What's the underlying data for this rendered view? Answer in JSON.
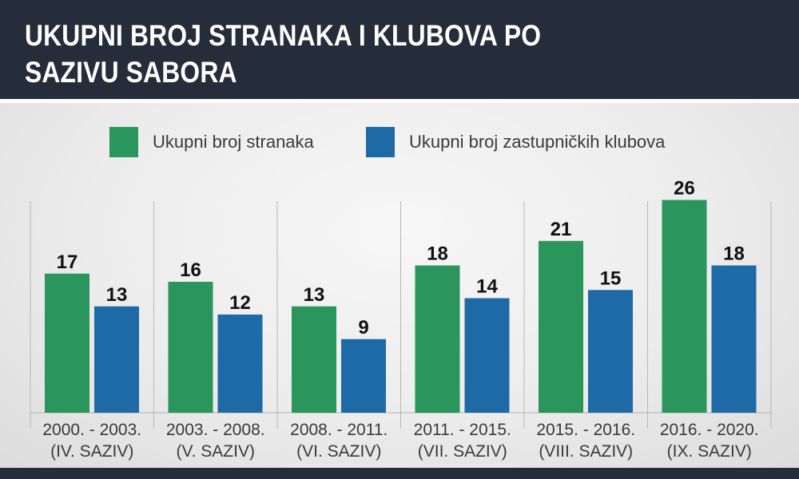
{
  "header": {
    "title_line1": "UKUPNI BROJ STRANAKA I KLUBOVA PO",
    "title_line2": "SAZIVU SABORA"
  },
  "colors": {
    "header_bg": "#252c3a",
    "series_green": "#2a965c",
    "series_blue": "#1e6aa6"
  },
  "chart_data": {
    "type": "bar",
    "title": "UKUPNI BROJ STRANAKA I KLUBOVA PO SAZIVU SABORA",
    "categories": [
      [
        "2000. - 2003.",
        "(IV. SAZIV)"
      ],
      [
        "2003. - 2008.",
        "(V. SAZIV)"
      ],
      [
        "2008. - 2011.",
        "(VI. SAZIV)"
      ],
      [
        "2011. - 2015.",
        "(VII. SAZIV)"
      ],
      [
        "2015. - 2016.",
        "(VIII. SAZIV)"
      ],
      [
        "2016. - 2020.",
        "(IX. SAZIV)"
      ]
    ],
    "series": [
      {
        "name": "Ukupni broj stranaka",
        "color": "#2a965c",
        "values": [
          17,
          16,
          13,
          18,
          21,
          26
        ]
      },
      {
        "name": "Ukupni broj zastupničkih klubova",
        "color": "#1e6aa6",
        "values": [
          13,
          12,
          9,
          14,
          15,
          18
        ]
      }
    ],
    "ylim": [
      0,
      26
    ],
    "grid": false,
    "legend_position": "top",
    "data_labels": true
  }
}
